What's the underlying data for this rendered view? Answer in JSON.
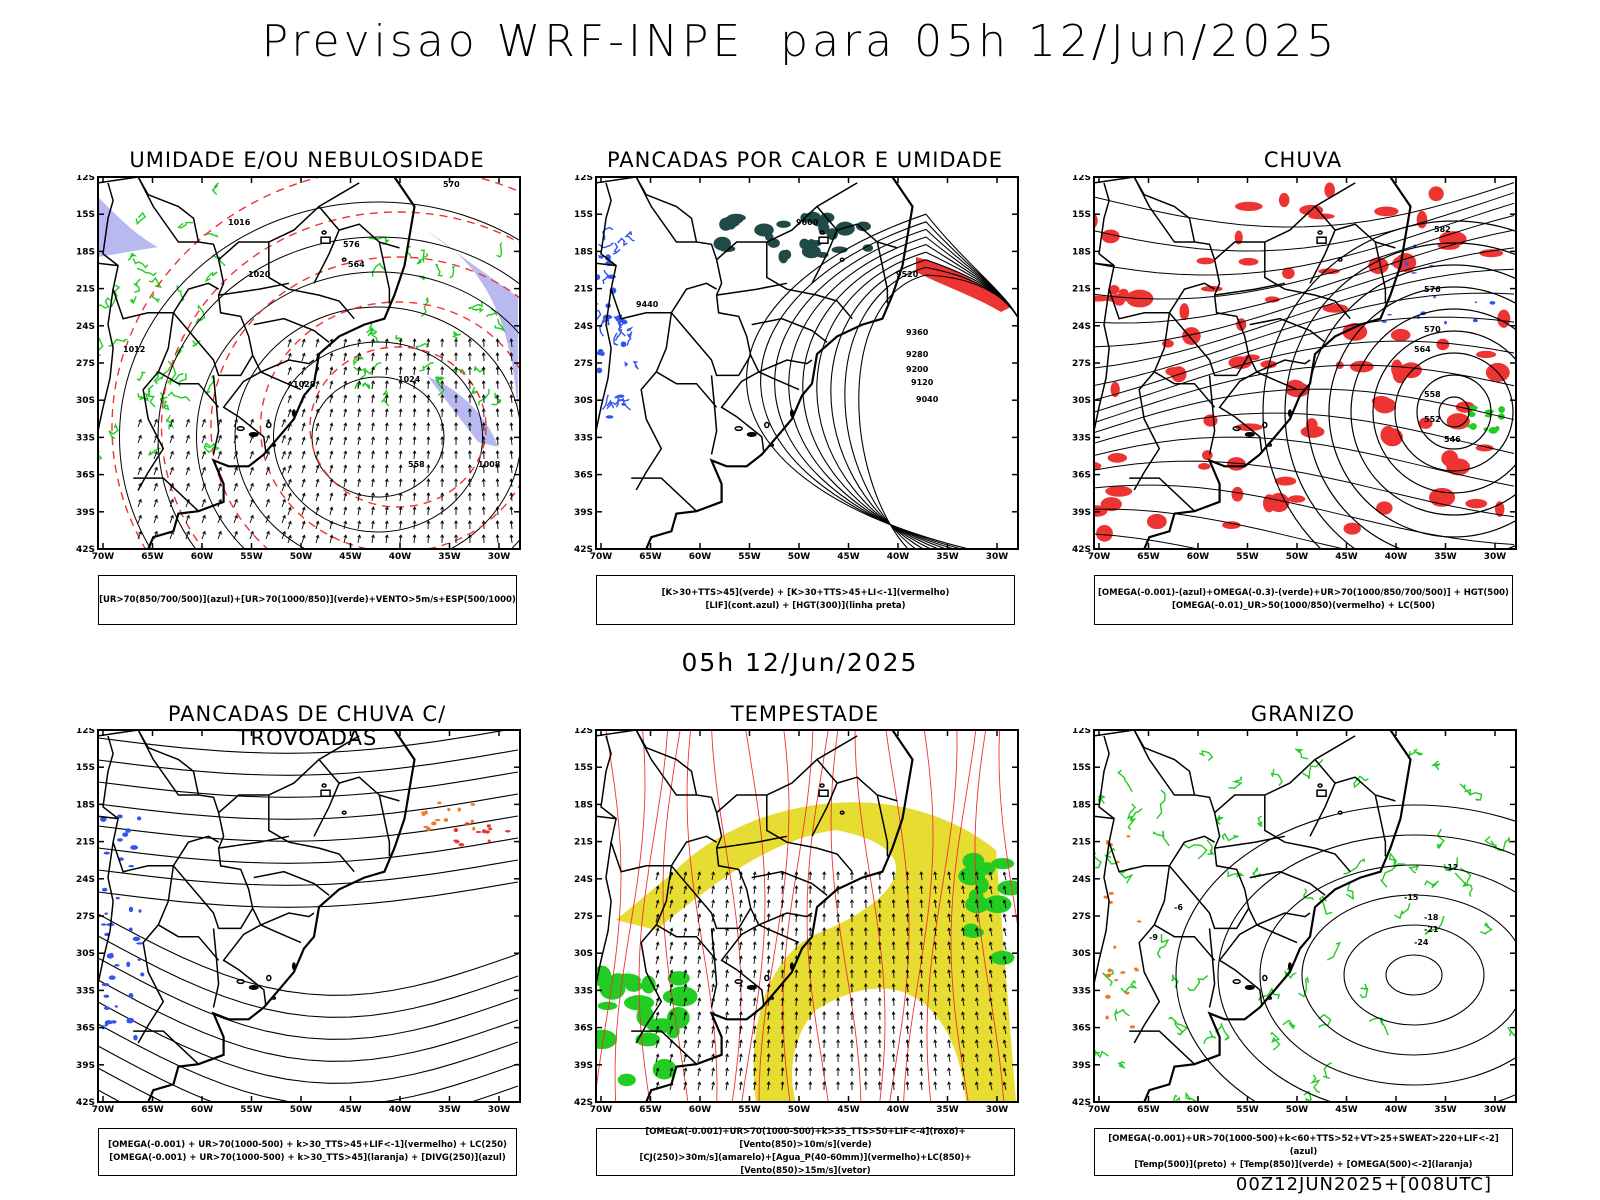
{
  "main_title": "Previsao WRF-INPE  para 05h 12/Jun/2025",
  "mid_title": "05h 12/Jun/2025",
  "footer": "00Z12JUN2025+[008UTC]",
  "lat_ticks": [
    "12S",
    "15S",
    "18S",
    "21S",
    "24S",
    "27S",
    "30S",
    "33S",
    "36S",
    "39S",
    "42S"
  ],
  "lon_ticks": [
    "70W",
    "65W",
    "60W",
    "55W",
    "50W",
    "45W",
    "40W",
    "35W",
    "30W"
  ],
  "colors": {
    "blue": "#3355ee",
    "green": "#22cc22",
    "red": "#ee3333",
    "dark_teal": "#1f4a48",
    "yellow": "#e6dc32",
    "orange": "#ee7722",
    "lavender": "#a8a8ee",
    "black": "#000000"
  },
  "panels": [
    {
      "title": "UMIDADE E/OU NEBULOSIDADE",
      "legend": [
        "[UR>70(850/700/500)](azul)+[UR>70(1000/850)](verde)+VENTO>5m/s+ESP(500/1000)"
      ],
      "contour_labels": [
        "1016",
        "1020",
        "1024",
        "1028",
        "1012",
        "1008",
        "570",
        "564",
        "558",
        "576"
      ]
    },
    {
      "title": "PANCADAS POR CALOR E UMIDADE",
      "legend": [
        "[K>30+TTS>45](verde) + [K>30+TTS>45+LI<-1](vermelho)",
        "[LIF](cont.azul) + [HGT(300)](linha preta)"
      ],
      "contour_labels": [
        "9600",
        "9520",
        "9440",
        "9360",
        "9280",
        "9200",
        "9120",
        "9040"
      ]
    },
    {
      "title": "CHUVA",
      "legend": [
        "[OMEGA(-0.001)-(azul)+OMEGA(-0.3)-(verde)+UR>70(1000/850/700/500)] + HGT(500)",
        "[OMEGA(-0.01)_UR>50(1000/850)(vermelho) + LC(500)"
      ],
      "contour_labels": [
        "582",
        "576",
        "570",
        "564",
        "558",
        "552",
        "546"
      ]
    },
    {
      "title": "PANCADAS DE CHUVA C/ TROVOADAS",
      "legend": [
        "[OMEGA(-0.001) + UR>70(1000-500) + k>30_TTS>45+LIF<-1](vermelho) + LC(250)",
        "[OMEGA(-0.001) + UR>70(1000-500) + k>30_TTS>45](laranja) + [DIVG(250)](azul)"
      ],
      "contour_labels": []
    },
    {
      "title": "TEMPESTADE",
      "legend": [
        "[OMEGA(-0.001)+UR>70(1000-500)+k>35_TTS>50+LIF<-4](roxo)+[Vento(850)>10m/s](verde)",
        "[CJ(250)>30m/s](amarelo)+[Agua_P(40-60mm)](vermelho)+LC(850)+[Vento(850)>15m/s](vetor)"
      ],
      "contour_labels": []
    },
    {
      "title": "GRANIZO",
      "legend": [
        "[OMEGA(-0.001)+UR>70(1000-500)+k<60+TTS>52+VT>25+SWEAT>220+LIF<-2](azul)",
        "[Temp(500)](preto) + [Temp(850)](verde) + [OMEGA(500)<-2](laranja)"
      ],
      "contour_labels": [
        "-12",
        "-15",
        "-18",
        "-21",
        "-24",
        "-6",
        "-9"
      ]
    }
  ]
}
